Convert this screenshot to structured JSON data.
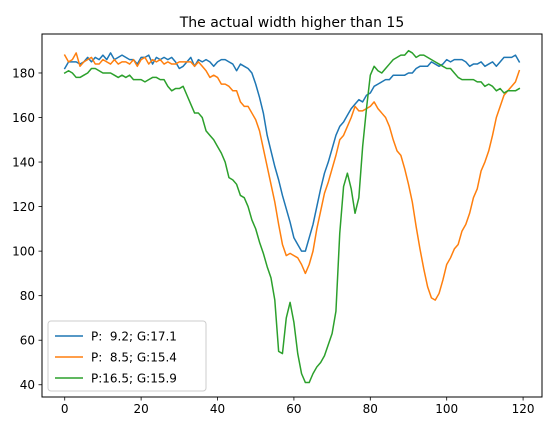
{
  "chart_data": {
    "type": "line",
    "title": "The actual width higher than 15",
    "xlabel": "",
    "ylabel": "",
    "xlim": [
      -5.95,
      124.95
    ],
    "ylim": [
      34.5,
      197.5
    ],
    "xticks": [
      0,
      20,
      40,
      60,
      80,
      100,
      120
    ],
    "yticks": [
      40,
      60,
      80,
      100,
      120,
      140,
      160,
      180
    ],
    "grid": false,
    "legend_position": "lower-left",
    "x": [
      0,
      1,
      2,
      3,
      4,
      5,
      6,
      7,
      8,
      9,
      10,
      11,
      12,
      13,
      14,
      15,
      16,
      17,
      18,
      19,
      20,
      21,
      22,
      23,
      24,
      25,
      26,
      27,
      28,
      29,
      30,
      31,
      32,
      33,
      34,
      35,
      36,
      37,
      38,
      39,
      40,
      41,
      42,
      43,
      44,
      45,
      46,
      47,
      48,
      49,
      50,
      51,
      52,
      53,
      54,
      55,
      56,
      57,
      58,
      59,
      60,
      61,
      62,
      63,
      64,
      65,
      66,
      67,
      68,
      69,
      70,
      71,
      72,
      73,
      74,
      75,
      76,
      77,
      78,
      79,
      80,
      81,
      82,
      83,
      84,
      85,
      86,
      87,
      88,
      89,
      90,
      91,
      92,
      93,
      94,
      95,
      96,
      97,
      98,
      99,
      100,
      101,
      102,
      103,
      104,
      105,
      106,
      107,
      108,
      109,
      110,
      111,
      112,
      113,
      114,
      115,
      116,
      117,
      118,
      119
    ],
    "series": [
      {
        "name": "P:  9.2; G:17.1",
        "color": "#1f77b4",
        "values": [
          182,
          185,
          185,
          185,
          184,
          185,
          187,
          185,
          187,
          186,
          188,
          186,
          189,
          186,
          187,
          188,
          187,
          186,
          186,
          184,
          187,
          187,
          188,
          184,
          187,
          186,
          187,
          186,
          187,
          185,
          182,
          183,
          185,
          187,
          183,
          186,
          185,
          186,
          185,
          183,
          185,
          186,
          186,
          185,
          184,
          181,
          184,
          183,
          182,
          180,
          175,
          169,
          162,
          152,
          145,
          138,
          132,
          125,
          119,
          113,
          106,
          103,
          100,
          100,
          106,
          112,
          120,
          128,
          135,
          140,
          146,
          152,
          156,
          158,
          161,
          164,
          166,
          168,
          167,
          170,
          171,
          174,
          175,
          176,
          177,
          177,
          179,
          179,
          179,
          179,
          180,
          180,
          182,
          183,
          183,
          183,
          185,
          184,
          183,
          184,
          186,
          185,
          186,
          186,
          186,
          185,
          183,
          184,
          184,
          185,
          183,
          184,
          185,
          183,
          185,
          187,
          187,
          187,
          188,
          185
        ]
      },
      {
        "name": "P:  8.5; G:15.4",
        "color": "#ff7f0e",
        "values": [
          188,
          185,
          186,
          189,
          183,
          185,
          186,
          187,
          184,
          184,
          186,
          185,
          184,
          186,
          184,
          185,
          185,
          184,
          186,
          183,
          186,
          187,
          184,
          186,
          185,
          186,
          184,
          185,
          184,
          184,
          185,
          185,
          185,
          185,
          183,
          185,
          183,
          181,
          178,
          179,
          178,
          175,
          175,
          174,
          172,
          172,
          167,
          165,
          165,
          162,
          159,
          154,
          146,
          138,
          130,
          122,
          112,
          103,
          98,
          99,
          98,
          97,
          94,
          90,
          94,
          100,
          110,
          118,
          126,
          131,
          137,
          143,
          150,
          152,
          156,
          160,
          165,
          163,
          163,
          164,
          165,
          167,
          164,
          162,
          160,
          156,
          150,
          145,
          143,
          137,
          130,
          122,
          111,
          101,
          92,
          84,
          79,
          78,
          81,
          87,
          94,
          97,
          101,
          103,
          109,
          112,
          117,
          124,
          128,
          136,
          140,
          145,
          152,
          160,
          165,
          170,
          172,
          174,
          176,
          181
        ]
      },
      {
        "name": "P:16.5; G:15.9",
        "color": "#2ca02c",
        "values": [
          180,
          181,
          180,
          178,
          178,
          179,
          180,
          182,
          182,
          181,
          180,
          180,
          180,
          179,
          178,
          179,
          178,
          179,
          177,
          177,
          177,
          176,
          177,
          178,
          178,
          177,
          177,
          174,
          172,
          173,
          173,
          174,
          170,
          166,
          162,
          162,
          160,
          154,
          152,
          150,
          147,
          144,
          140,
          133,
          132,
          130,
          125,
          124,
          120,
          114,
          110,
          104,
          99,
          93,
          88,
          78,
          55,
          54,
          70,
          77,
          68,
          54,
          45,
          41,
          41,
          45,
          48,
          50,
          53,
          58,
          63,
          73,
          108,
          129,
          135,
          128,
          117,
          124,
          147,
          164,
          179,
          183,
          181,
          180,
          182,
          184,
          186,
          187,
          188,
          188,
          190,
          189,
          187,
          188,
          188,
          187,
          186,
          185,
          184,
          183,
          182,
          182,
          180,
          178,
          177,
          177,
          177,
          177,
          176,
          176,
          174,
          175,
          174,
          172,
          173,
          171,
          172,
          172,
          172,
          173
        ]
      }
    ]
  }
}
